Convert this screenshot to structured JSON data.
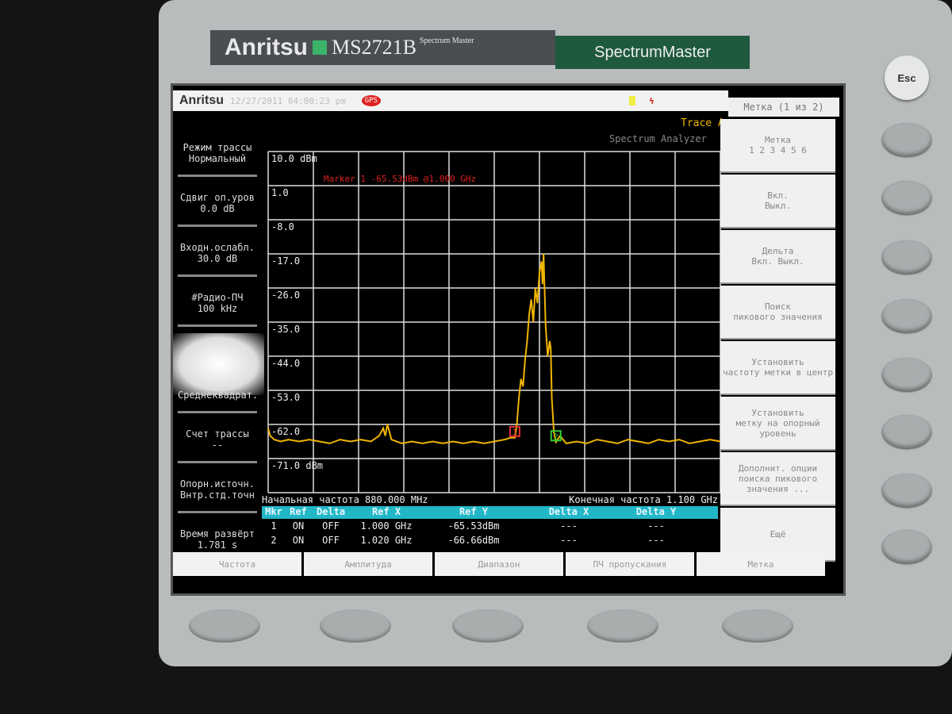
{
  "device": {
    "brand": "Anritsu",
    "model": "MS2721B",
    "model_sub": "Spectrum Master",
    "product": "SpectrumMaster",
    "esc_label": "Esc"
  },
  "status_bar": {
    "logo": "Anritsu",
    "datetime": "12/27/2011 04:00:23 pm",
    "gps": "GPS",
    "trace_label": "Trace A",
    "mode": "Spectrum Analyzer"
  },
  "left_panel": [
    {
      "label": "Режим трассы",
      "value": "Нормальный"
    },
    {
      "label": "Сдвиг оп.уров",
      "value": "0.0 dB"
    },
    {
      "label": "Входн.ослабл.",
      "value": "30.0 dB"
    },
    {
      "label": "#Радио-ПЧ",
      "value": "100 kHz"
    },
    {
      "label": "",
      "value": "Среднеквадрат."
    },
    {
      "label": "Счет трассы",
      "value": "--"
    },
    {
      "label": "Опорн.источн.",
      "value": "Внтр.стд.точн"
    },
    {
      "label": "Время развёрт",
      "value": "1.781 s"
    }
  ],
  "menu": {
    "header": "Метка (1 из 2)",
    "items": [
      {
        "line1": "Метка",
        "line2": "1 2 3 4 5 6"
      },
      {
        "line1": "Вкл.",
        "line2": "Выкл."
      },
      {
        "line1": "Дельта",
        "line2": "Вкл.   Выкл."
      },
      {
        "line1": "Поиск",
        "line2": "пикового значения"
      },
      {
        "line1": "Установить",
        "line2": "частоту метки в центр"
      },
      {
        "line1": "Установить",
        "line2": "метку на опорный уровень"
      },
      {
        "line1": "Дополнит. опции",
        "line2": "поиска пикового значения ..."
      },
      {
        "line1": "Ещё",
        "line2": ""
      }
    ]
  },
  "bottom_tabs": [
    "Частота",
    "Амплитуда",
    "Диапазон",
    "ПЧ пропускания",
    "Метка"
  ],
  "freq_info": {
    "start": "Начальная частота 880.000 MHz",
    "stop": "Конечная частота 1.100 GHz"
  },
  "marker_table": {
    "headers": [
      "Mkr",
      "Ref",
      "Delta",
      "Ref X",
      "Ref Y",
      "Delta X",
      "Delta Y"
    ],
    "rows": [
      [
        "1",
        "ON",
        "OFF",
        "1.000 GHz",
        "-65.53dBm",
        "---",
        "---"
      ],
      [
        "2",
        "ON",
        "OFF",
        "1.020 GHz",
        "-66.66dBm",
        "---",
        "---"
      ]
    ]
  },
  "chart_data": {
    "type": "line",
    "marker_readout": "Marker 1 -65.53dBm @1.000 GHz",
    "y_tick_labels": [
      "10.0 dBm",
      "1.0",
      "-8.0",
      "-17.0",
      "-26.0",
      "-35.0",
      "-44.0",
      "-53.0",
      "-62.0",
      "-71.0 dBm"
    ],
    "ylim": [
      -80,
      10
    ],
    "xlim": [
      880,
      1100
    ],
    "x_unit": "MHz",
    "y_unit": "dBm",
    "grid": true,
    "trace_color": "#f0b400",
    "series": [
      {
        "x": [
          880,
          881,
          883,
          886,
          890,
          895,
          900,
          905,
          910,
          915,
          920,
          925,
          930,
          934,
          936,
          937,
          938,
          939,
          940,
          945,
          950,
          955,
          960,
          965,
          970,
          975,
          980,
          985,
          990,
          995,
          998,
          1000,
          1001,
          1002,
          1003,
          1004,
          1005,
          1006,
          1007,
          1008,
          1009,
          1010,
          1011,
          1012,
          1013,
          1013.5,
          1014,
          1015,
          1016,
          1017,
          1017.5,
          1018,
          1019,
          1020,
          1022,
          1025,
          1030,
          1035,
          1040,
          1045,
          1050,
          1055,
          1060,
          1065,
          1070,
          1075,
          1080,
          1085,
          1090,
          1095,
          1100
        ],
        "y": [
          -63,
          -65,
          -66,
          -66.5,
          -66,
          -66.5,
          -66,
          -66.5,
          -67,
          -66,
          -66.5,
          -66,
          -66.5,
          -65,
          -63,
          -65,
          -62,
          -64,
          -66,
          -67,
          -66.5,
          -67,
          -66.5,
          -67,
          -66.5,
          -67,
          -66.5,
          -67,
          -66.5,
          -66,
          -65.5,
          -65.53,
          -62,
          -55,
          -50,
          -52,
          -45,
          -40,
          -33,
          -29,
          -35,
          -26,
          -30,
          -22,
          -19,
          -25,
          -17,
          -36,
          -44,
          -40,
          -42,
          -55,
          -64,
          -66.66,
          -65,
          -67,
          -66.5,
          -67,
          -66,
          -66.5,
          -67,
          -66,
          -66.5,
          -67,
          -66,
          -66.5,
          -66,
          -67,
          -66.5,
          -66,
          -66.5
        ]
      }
    ],
    "markers": [
      {
        "label": "1",
        "x": 1000,
        "y": -65.53,
        "color": "#d33"
      },
      {
        "label": "2",
        "x": 1020,
        "y": -66.66,
        "color": "#3c3"
      }
    ]
  }
}
